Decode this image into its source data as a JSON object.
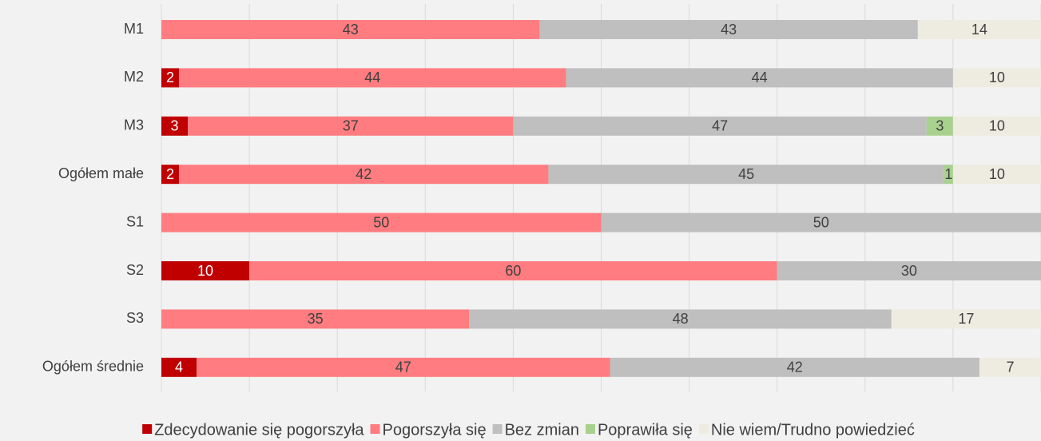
{
  "chart_data": {
    "type": "stacked_barh",
    "categories": [
      "M1",
      "M2",
      "M3",
      "Ogółem małe",
      "S1",
      "S2",
      "S3",
      "Ogółem średnie"
    ],
    "series": [
      {
        "name": "Zdecydowanie się pogorszyła",
        "color": "#c00000",
        "values": [
          null,
          2,
          3,
          2,
          null,
          10,
          null,
          4
        ]
      },
      {
        "name": "Pogorszyła się",
        "color": "#ff7c80",
        "values": [
          43,
          44,
          37,
          42,
          50,
          60,
          35,
          47
        ]
      },
      {
        "name": "Bez zmian",
        "color": "#bfbfbf",
        "values": [
          43,
          44,
          47,
          45,
          50,
          30,
          48,
          42
        ]
      },
      {
        "name": "Poprawiła się",
        "color": "#a9d18e",
        "values": [
          null,
          null,
          3,
          1,
          null,
          null,
          null,
          null
        ]
      },
      {
        "name": "Nie wiem/Trudno powiedzieć",
        "color": "#eeece1",
        "values": [
          14,
          10,
          10,
          10,
          null,
          null,
          17,
          7
        ]
      }
    ],
    "xlim": [
      0,
      100
    ],
    "xticks": [
      0,
      10,
      20,
      30,
      40,
      50,
      60,
      70,
      80,
      90,
      100
    ],
    "grid": true,
    "legend": "bottom"
  }
}
